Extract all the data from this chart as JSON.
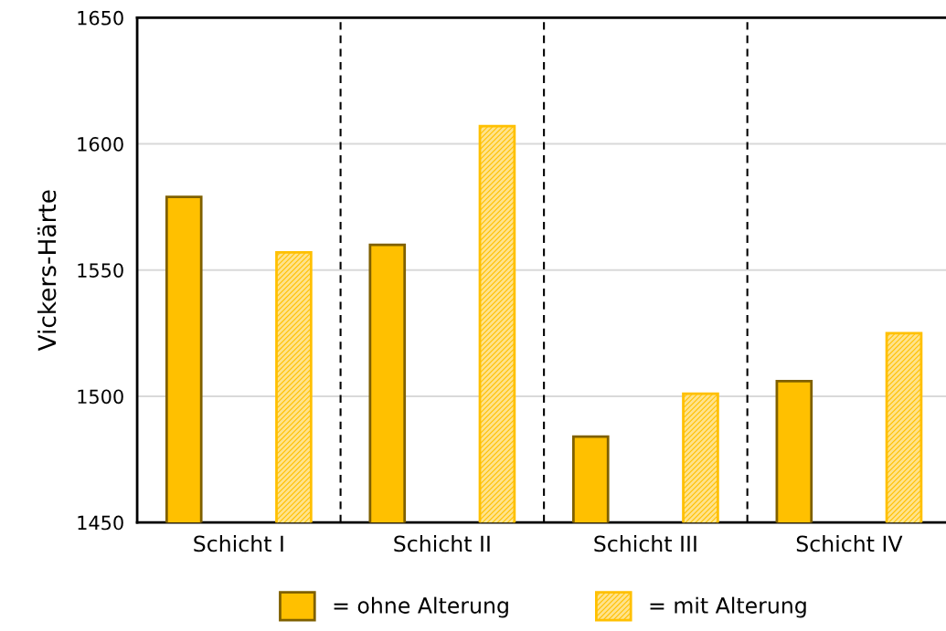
{
  "chart_data": {
    "type": "bar",
    "ylabel": "Vickers-Härte",
    "categories": [
      "Schicht I",
      "Schicht II",
      "Schicht III",
      "Schicht IV"
    ],
    "series": [
      {
        "name": "= ohne Alterung",
        "color": "#ffc000",
        "values": [
          1579,
          1560,
          1484,
          1506
        ]
      },
      {
        "name": "= mit Alterung",
        "color": "#ffc000",
        "values": [
          1557,
          1607,
          1501,
          1525
        ]
      }
    ],
    "ylim": [
      1450,
      1650
    ],
    "yticks": [
      1450,
      1500,
      1550,
      1600,
      1650
    ],
    "grid": "y",
    "legend": "bottom"
  }
}
